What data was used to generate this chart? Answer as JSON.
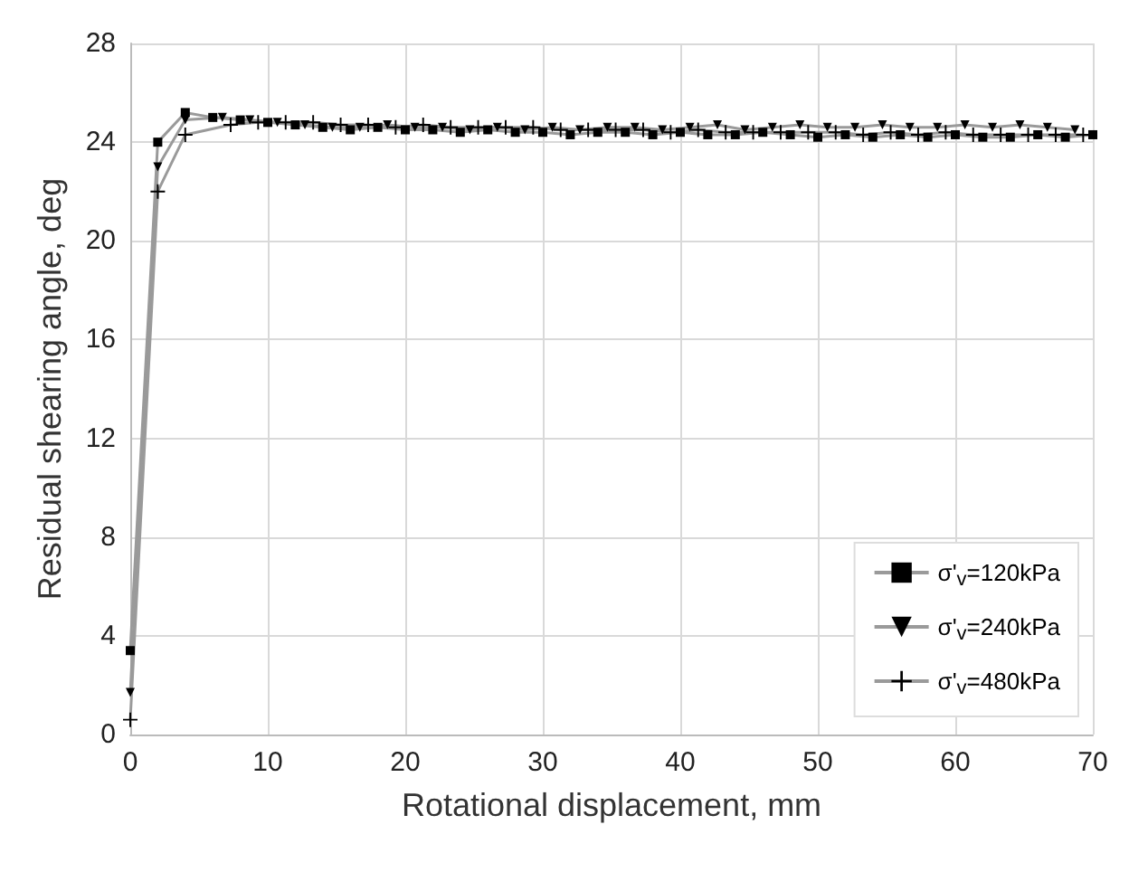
{
  "chart_data": {
    "type": "line",
    "xlabel": "Rotational displacement, mm",
    "ylabel": "Residual shearing angle, deg",
    "x": [
      0,
      2,
      4,
      6,
      8,
      10,
      12,
      14,
      16,
      18,
      20,
      22,
      24,
      26,
      28,
      30,
      32,
      34,
      36,
      38,
      40,
      42,
      44,
      46,
      48,
      50,
      52,
      54,
      56,
      58,
      60,
      62,
      64,
      66,
      68,
      70
    ],
    "series": [
      {
        "name": "σ'$_{v}$=120kPa",
        "color": "#000000",
        "marker": "square",
        "values": [
          3.4,
          24.0,
          25.2,
          25.0,
          24.9,
          24.8,
          24.7,
          24.6,
          24.5,
          24.6,
          24.5,
          24.5,
          24.4,
          24.5,
          24.4,
          24.4,
          24.3,
          24.4,
          24.4,
          24.3,
          24.4,
          24.3,
          24.3,
          24.4,
          24.3,
          24.2,
          24.3,
          24.2,
          24.3,
          24.2,
          24.3,
          24.2,
          24.2,
          24.3,
          24.2,
          24.3
        ]
      },
      {
        "name": "σ'$_{v}$=240kPa",
        "color": "#000000",
        "marker": "triangle",
        "x": [
          0,
          2,
          4,
          6.7,
          8.7,
          10.7,
          12.7,
          14.7,
          16.7,
          18.7,
          20.7,
          22.7,
          24.7,
          26.7,
          28.7,
          30.7,
          32.7,
          34.7,
          36.7,
          38.7,
          40.7,
          42.7,
          44.7,
          46.7,
          48.7,
          50.7,
          52.7,
          54.7,
          56.7,
          58.7,
          60.7,
          62.7,
          64.7,
          66.7,
          68.7
        ],
        "values": [
          1.7,
          23.0,
          24.9,
          25.0,
          24.9,
          24.8,
          24.7,
          24.6,
          24.6,
          24.7,
          24.6,
          24.6,
          24.5,
          24.6,
          24.5,
          24.6,
          24.5,
          24.6,
          24.6,
          24.5,
          24.6,
          24.7,
          24.5,
          24.6,
          24.7,
          24.6,
          24.6,
          24.7,
          24.6,
          24.6,
          24.7,
          24.6,
          24.7,
          24.6,
          24.5
        ]
      },
      {
        "name": "σ'$_{v}$=480kPa",
        "color": "#000000",
        "marker": "cross",
        "x": [
          0,
          2,
          4,
          7.3,
          9.3,
          11.3,
          13.3,
          15.3,
          17.3,
          19.3,
          21.3,
          23.3,
          25.3,
          27.3,
          29.3,
          31.3,
          33.3,
          35.3,
          37.3,
          39.3,
          41.3,
          43.3,
          45.3,
          47.3,
          49.3,
          51.3,
          53.3,
          55.3,
          57.3,
          59.3,
          61.3,
          63.3,
          65.3,
          67.3,
          69.3
        ],
        "values": [
          0.6,
          22.0,
          24.3,
          24.7,
          24.8,
          24.8,
          24.8,
          24.7,
          24.7,
          24.6,
          24.7,
          24.6,
          24.6,
          24.6,
          24.6,
          24.5,
          24.5,
          24.5,
          24.5,
          24.4,
          24.5,
          24.4,
          24.4,
          24.4,
          24.4,
          24.4,
          24.3,
          24.4,
          24.3,
          24.4,
          24.3,
          24.3,
          24.3,
          24.3,
          24.3
        ]
      }
    ],
    "xlim": [
      0,
      70
    ],
    "xticks": [
      0,
      10,
      20,
      30,
      40,
      50,
      60,
      70
    ],
    "ylim": [
      0,
      28
    ],
    "yticks": [
      0,
      4,
      8,
      12,
      16,
      20,
      24,
      28
    ],
    "grid": true,
    "legend": "bottom right"
  }
}
